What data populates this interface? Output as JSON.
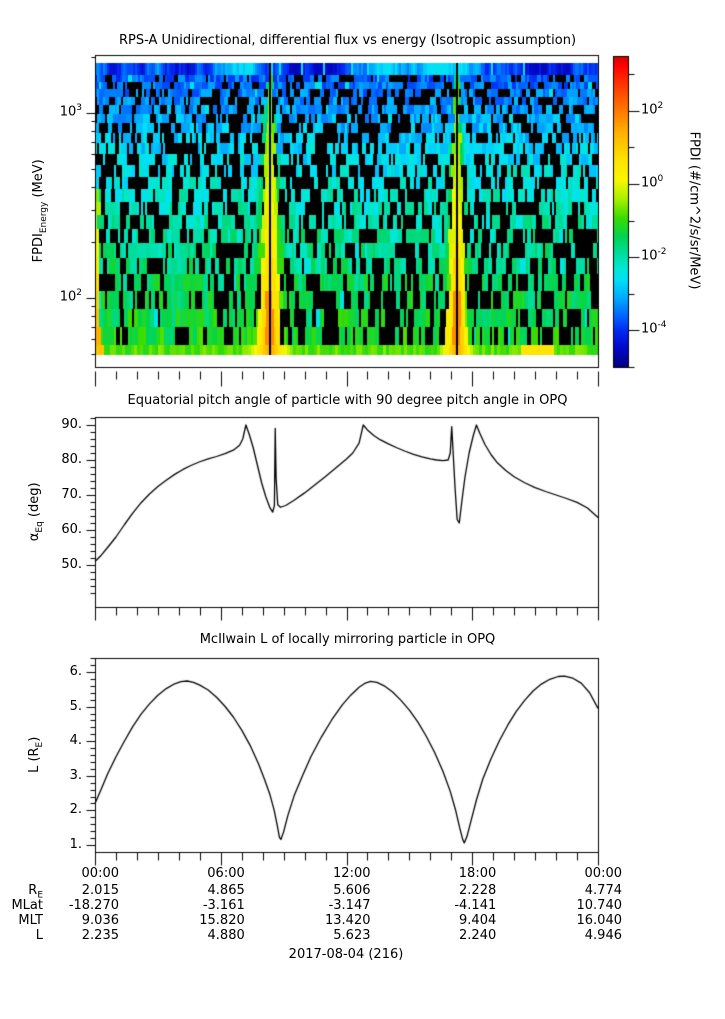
{
  "figure": {
    "titles": {
      "flux": "RPS-A Unidirectional, differential flux vs energy (Isotropic assumption)",
      "pitch": "Equatorial pitch angle of particle with 90 degree pitch angle in OPQ",
      "mcilwain": "McIlwain L of locally mirroring particle in OPQ"
    },
    "date_label": "2017-08-04 (216)"
  },
  "axes": {
    "x": {
      "hours_range": [
        0,
        24
      ],
      "major_tick_hours": [
        0,
        6,
        12,
        18,
        24
      ],
      "major_tick_labels": [
        "00:00",
        "06:00",
        "12:00",
        "18:00",
        "00:00"
      ],
      "minor_step_hours": 1
    },
    "flux_y": {
      "scale": "log",
      "label_pre": "FPDI",
      "label_sub": "Energy",
      "label_post": " (MeV)",
      "major_tick_exponents": [
        "3",
        "2"
      ],
      "major_tick_values": [
        1000,
        100
      ],
      "minor_tick_values": [
        2000,
        900,
        800,
        700,
        600,
        500,
        400,
        300,
        200,
        90,
        80,
        70,
        60,
        50
      ]
    },
    "pitch_y": {
      "label_pre": "α",
      "label_sub": "Eq",
      "label_post": " (deg)",
      "major_ticks": [
        90,
        80,
        70,
        60,
        50
      ],
      "tick_suffix": ".",
      "minor_step": 2,
      "minor_range": [
        40,
        92
      ],
      "value_range": [
        38,
        92.3
      ]
    },
    "L_y": {
      "label_pre": "L (R",
      "label_sub": "E",
      "label_post": ")",
      "major_ticks": [
        6,
        5,
        4,
        3,
        2,
        1
      ],
      "tick_suffix": ".",
      "minor_step": 0.2,
      "minor_range": [
        1,
        6.4
      ],
      "value_range": [
        0.8,
        6.4
      ]
    },
    "colorbar": {
      "label": "FPDI (#/cm^2/s/sr/MeV)",
      "major_tick_exponents": [
        "2",
        "0",
        "-2",
        "-4"
      ],
      "minor_tick_exponents": [
        "3",
        "1",
        "-1",
        "-3",
        "-5"
      ],
      "log10_top": 3.5,
      "log10_bottom": -5
    }
  },
  "footer": {
    "row_labels": [
      {
        "pre": "R",
        "sub": "E"
      },
      {
        "pre": "MLat",
        "sub": ""
      },
      {
        "pre": "MLT",
        "sub": ""
      },
      {
        "pre": "L",
        "sub": ""
      }
    ],
    "rows": [
      [
        "2.015",
        "4.865",
        "5.606",
        "2.228",
        "4.774"
      ],
      [
        "-18.270",
        "-3.161",
        "-3.147",
        "-4.141",
        "10.740"
      ],
      [
        "9.036",
        "15.820",
        "13.420",
        "9.404",
        "16.040"
      ],
      [
        "2.235",
        "4.880",
        "5.623",
        "2.240",
        "4.946"
      ]
    ]
  },
  "chart_data": [
    {
      "type": "heatmap",
      "title": "RPS-A Unidirectional, differential flux vs energy (Isotropic assumption)",
      "xlabel": "UT hours, 2017-08-04 (216)",
      "x_range_hours": [
        0,
        24
      ],
      "ylabel": "FPDI_Energy (MeV)",
      "y_range_MeV": [
        55,
        1450
      ],
      "y_scale": "log",
      "value_label": "FPDI (#/cm^2/s/sr/MeV)",
      "value_log10_range": [
        -5,
        3.5
      ],
      "features": {
        "perigee_plume_center_hours": [
          8.35,
          17.27
        ],
        "plume_center_dropout_lines": true,
        "description": "Speckled blue/cyan flux with black dropout pixels; flux increases toward lower energy; green-yellow-orange enhancement wedges widening toward low energy centered on the two perigee passes; continuous blue stripe band at the highest energies and continuous green band at the lowest energies; yellow/orange patches at low energy near hour 0 and hour 21"
      },
      "palette_stops": [
        [
          0,
          "#d40000"
        ],
        [
          0.03,
          "#ff0000"
        ],
        [
          0.1,
          "#ff3c00"
        ],
        [
          0.175,
          "#ff7800"
        ],
        [
          0.25,
          "#ffb400"
        ],
        [
          0.33,
          "#ffe100"
        ],
        [
          0.4,
          "#f8f800"
        ],
        [
          0.46,
          "#a8f000"
        ],
        [
          0.52,
          "#3cdc00"
        ],
        [
          0.58,
          "#00d450"
        ],
        [
          0.63,
          "#00dc96"
        ],
        [
          0.68,
          "#00e8d0"
        ],
        [
          0.72,
          "#00e0f8"
        ],
        [
          0.78,
          "#00a8ff"
        ],
        [
          0.84,
          "#0060ff"
        ],
        [
          0.885,
          "#0028f0"
        ],
        [
          0.94,
          "#0008c8"
        ],
        [
          1,
          "#000080"
        ]
      ]
    },
    {
      "type": "line",
      "title": "Equatorial pitch angle of particle with 90 degree pitch angle in OPQ",
      "xlabel": "UT hours",
      "ylabel": "α_Eq (deg)",
      "ylim": [
        38,
        92.3
      ],
      "points": [
        [
          0,
          51
        ],
        [
          0.3,
          52.8
        ],
        [
          0.6,
          55
        ],
        [
          1,
          58
        ],
        [
          1.4,
          61.5
        ],
        [
          1.8,
          64.8
        ],
        [
          2.2,
          67.8
        ],
        [
          2.6,
          70.3
        ],
        [
          3,
          72.4
        ],
        [
          3.4,
          74.2
        ],
        [
          3.8,
          75.9
        ],
        [
          4.2,
          77.3
        ],
        [
          4.6,
          78.5
        ],
        [
          5,
          79.5
        ],
        [
          5.4,
          80.3
        ],
        [
          5.8,
          81
        ],
        [
          6.2,
          81.8
        ],
        [
          6.6,
          82.8
        ],
        [
          6.9,
          84.2
        ],
        [
          7.05,
          86
        ],
        [
          7.2,
          90
        ],
        [
          7.35,
          87.5
        ],
        [
          7.55,
          83.5
        ],
        [
          7.75,
          78.5
        ],
        [
          7.95,
          73.5
        ],
        [
          8.15,
          69.5
        ],
        [
          8.35,
          66.3
        ],
        [
          8.48,
          65.1
        ],
        [
          8.56,
          67
        ],
        [
          8.6,
          89
        ],
        [
          8.64,
          75
        ],
        [
          8.72,
          67.2
        ],
        [
          8.85,
          66.5
        ],
        [
          9.1,
          67
        ],
        [
          9.5,
          68.5
        ],
        [
          10,
          70.6
        ],
        [
          10.5,
          72.9
        ],
        [
          11,
          75.3
        ],
        [
          11.5,
          77.8
        ],
        [
          12,
          80.3
        ],
        [
          12.3,
          82
        ],
        [
          12.6,
          84.8
        ],
        [
          12.8,
          90
        ],
        [
          13,
          88.6
        ],
        [
          13.3,
          87
        ],
        [
          13.6,
          85.8
        ],
        [
          14,
          84.6
        ],
        [
          14.4,
          83.5
        ],
        [
          14.8,
          82.5
        ],
        [
          15.2,
          81.6
        ],
        [
          15.6,
          80.9
        ],
        [
          16,
          80.3
        ],
        [
          16.3,
          80
        ],
        [
          16.6,
          79.8
        ],
        [
          16.85,
          80
        ],
        [
          16.95,
          82
        ],
        [
          17.02,
          89.5
        ],
        [
          17.08,
          83
        ],
        [
          17.18,
          72
        ],
        [
          17.28,
          63
        ],
        [
          17.38,
          62
        ],
        [
          17.5,
          68
        ],
        [
          17.65,
          75
        ],
        [
          17.85,
          82
        ],
        [
          18.05,
          87
        ],
        [
          18.2,
          90
        ],
        [
          18.35,
          87.8
        ],
        [
          18.6,
          84.5
        ],
        [
          18.9,
          81.5
        ],
        [
          19.2,
          79.2
        ],
        [
          19.6,
          77
        ],
        [
          20,
          75.2
        ],
        [
          20.5,
          73.5
        ],
        [
          21,
          72.1
        ],
        [
          21.5,
          71
        ],
        [
          22,
          70
        ],
        [
          22.5,
          69
        ],
        [
          23,
          67.9
        ],
        [
          23.5,
          66.3
        ],
        [
          24,
          63.6
        ]
      ]
    },
    {
      "type": "line",
      "title": "McIlwain L of locally mirroring particle in OPQ",
      "xlabel": "UT hours",
      "ylabel": "L (R_E)",
      "ylim": [
        0.8,
        6.4
      ],
      "points": [
        [
          0,
          2.2
        ],
        [
          0.3,
          2.62
        ],
        [
          0.6,
          3.05
        ],
        [
          1,
          3.55
        ],
        [
          1.4,
          4
        ],
        [
          1.8,
          4.42
        ],
        [
          2.2,
          4.78
        ],
        [
          2.6,
          5.08
        ],
        [
          3,
          5.33
        ],
        [
          3.4,
          5.52
        ],
        [
          3.8,
          5.66
        ],
        [
          4.1,
          5.72
        ],
        [
          4.4,
          5.74
        ],
        [
          4.7,
          5.7
        ],
        [
          5,
          5.62
        ],
        [
          5.4,
          5.48
        ],
        [
          5.8,
          5.27
        ],
        [
          6.2,
          5.01
        ],
        [
          6.6,
          4.7
        ],
        [
          7,
          4.32
        ],
        [
          7.4,
          3.88
        ],
        [
          7.8,
          3.35
        ],
        [
          8.1,
          2.88
        ],
        [
          8.35,
          2.45
        ],
        [
          8.55,
          2
        ],
        [
          8.7,
          1.55
        ],
        [
          8.8,
          1.22
        ],
        [
          8.87,
          1.16
        ],
        [
          9,
          1.38
        ],
        [
          9.2,
          1.85
        ],
        [
          9.5,
          2.42
        ],
        [
          9.9,
          3
        ],
        [
          10.3,
          3.55
        ],
        [
          10.8,
          4.12
        ],
        [
          11.3,
          4.62
        ],
        [
          11.8,
          5.05
        ],
        [
          12.2,
          5.33
        ],
        [
          12.6,
          5.56
        ],
        [
          12.9,
          5.68
        ],
        [
          13.15,
          5.73
        ],
        [
          13.45,
          5.7
        ],
        [
          13.8,
          5.6
        ],
        [
          14.2,
          5.42
        ],
        [
          14.6,
          5.18
        ],
        [
          15,
          4.9
        ],
        [
          15.4,
          4.56
        ],
        [
          15.8,
          4.15
        ],
        [
          16.2,
          3.68
        ],
        [
          16.6,
          3.13
        ],
        [
          16.95,
          2.55
        ],
        [
          17.2,
          2.02
        ],
        [
          17.4,
          1.5
        ],
        [
          17.55,
          1.15
        ],
        [
          17.62,
          1.06
        ],
        [
          17.75,
          1.25
        ],
        [
          17.95,
          1.72
        ],
        [
          18.2,
          2.3
        ],
        [
          18.5,
          2.9
        ],
        [
          18.9,
          3.5
        ],
        [
          19.3,
          4.02
        ],
        [
          19.7,
          4.47
        ],
        [
          20.1,
          4.86
        ],
        [
          20.5,
          5.18
        ],
        [
          20.9,
          5.45
        ],
        [
          21.3,
          5.65
        ],
        [
          21.7,
          5.79
        ],
        [
          22.1,
          5.87
        ],
        [
          22.4,
          5.88
        ],
        [
          22.8,
          5.82
        ],
        [
          23.2,
          5.68
        ],
        [
          23.6,
          5.4
        ],
        [
          24,
          4.95
        ]
      ]
    }
  ]
}
